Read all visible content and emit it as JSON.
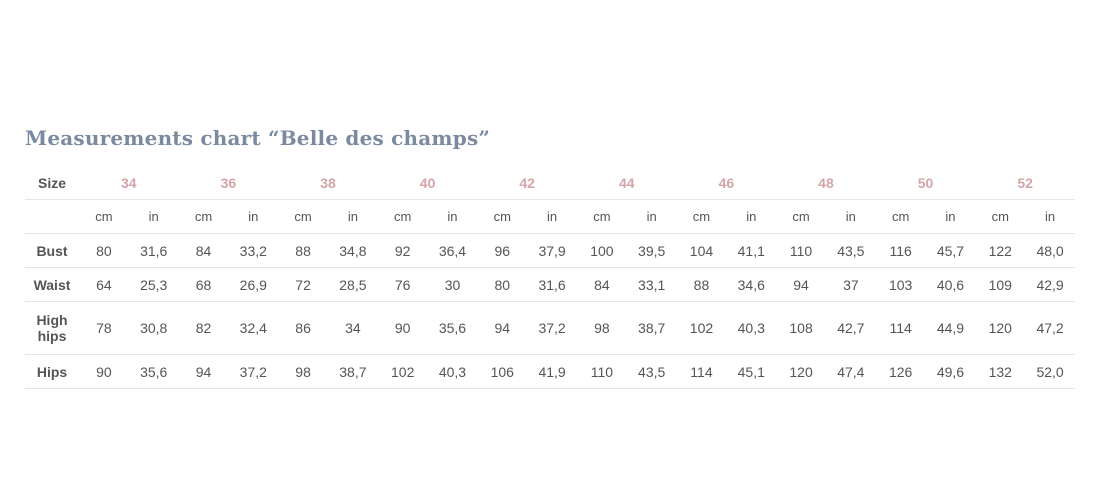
{
  "title": "Measurements chart “Belle des champs”",
  "table": {
    "size_label": "Size",
    "sizes": [
      "34",
      "36",
      "38",
      "40",
      "42",
      "44",
      "46",
      "48",
      "50",
      "52"
    ],
    "units": [
      "cm",
      "in"
    ],
    "rows": [
      {
        "label": "Bust",
        "values": [
          "80",
          "31,6",
          "84",
          "33,2",
          "88",
          "34,8",
          "92",
          "36,4",
          "96",
          "37,9",
          "100",
          "39,5",
          "104",
          "41,1",
          "110",
          "43,5",
          "116",
          "45,7",
          "122",
          "48,0"
        ]
      },
      {
        "label": "Waist",
        "values": [
          "64",
          "25,3",
          "68",
          "26,9",
          "72",
          "28,5",
          "76",
          "30",
          "80",
          "31,6",
          "84",
          "33,1",
          "88",
          "34,6",
          "94",
          "37",
          "103",
          "40,6",
          "109",
          "42,9"
        ]
      },
      {
        "label": "High hips",
        "values": [
          "78",
          "30,8",
          "82",
          "32,4",
          "86",
          "34",
          "90",
          "35,6",
          "94",
          "37,2",
          "98",
          "38,7",
          "102",
          "40,3",
          "108",
          "42,7",
          "114",
          "44,9",
          "120",
          "47,2"
        ]
      },
      {
        "label": "Hips",
        "values": [
          "90",
          "35,6",
          "94",
          "37,2",
          "98",
          "38,7",
          "102",
          "40,3",
          "106",
          "41,9",
          "110",
          "43,5",
          "114",
          "45,1",
          "120",
          "47,4",
          "126",
          "49,6",
          "132",
          "52,0"
        ]
      }
    ]
  },
  "colors": {
    "title": "#7a8aa0",
    "size_header": "#d4a5a8",
    "text": "#555555",
    "divider": "#e6e6e6"
  }
}
